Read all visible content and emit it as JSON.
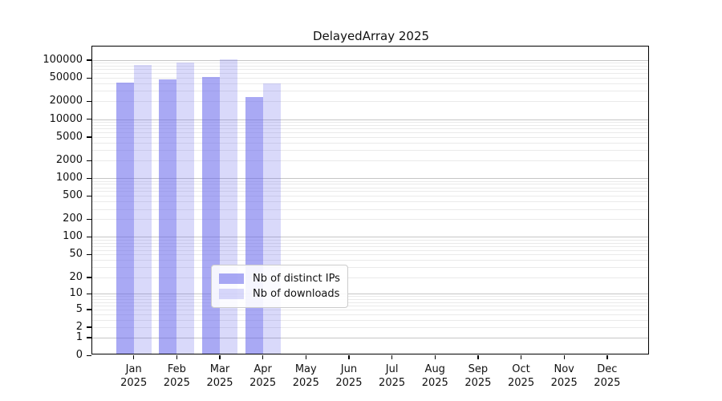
{
  "chart": {
    "title": "DelayedArray 2025",
    "axis_color": "#000000",
    "major_grid_color": "#c6c6c6",
    "minor_grid_color": "#eaeaea",
    "legend": {
      "items": [
        {
          "label": "Nb of distinct IPs",
          "color": "rgba(98,98,235,0.55)"
        },
        {
          "label": "Nb of downloads",
          "color": "rgba(98,98,235,0.24)"
        }
      ]
    }
  },
  "chart_data": {
    "type": "bar",
    "title": "DelayedArray 2025",
    "categories": [
      "Jan",
      "Feb",
      "Mar",
      "Apr",
      "May",
      "Jun",
      "Jul",
      "Aug",
      "Sep",
      "Oct",
      "Nov",
      "Dec"
    ],
    "category_year": "2025",
    "series": [
      {
        "name": "Nb of distinct IPs",
        "color": "rgba(98,98,235,0.55)",
        "values": [
          39000,
          45000,
          48000,
          22000,
          0,
          0,
          0,
          0,
          0,
          0,
          0,
          0
        ]
      },
      {
        "name": "Nb of downloads",
        "color": "rgba(98,98,235,0.24)",
        "values": [
          77000,
          85000,
          97000,
          38000,
          0,
          0,
          0,
          0,
          0,
          0,
          0,
          0
        ]
      }
    ],
    "yscale": "log1p",
    "yticks": [
      0,
      1,
      2,
      5,
      10,
      20,
      50,
      100,
      200,
      500,
      1000,
      2000,
      5000,
      10000,
      20000,
      50000,
      100000
    ],
    "ytick_labels": [
      "0",
      "1",
      "2",
      "5",
      "10",
      "20",
      "50",
      "100",
      "200",
      "500",
      "1000",
      "2000",
      "5000",
      "10000",
      "20000",
      "50000",
      "100000"
    ],
    "ylim": [
      0,
      170000
    ],
    "grid": "horizontal-log-minor-major",
    "legend_position": "lower-center"
  }
}
